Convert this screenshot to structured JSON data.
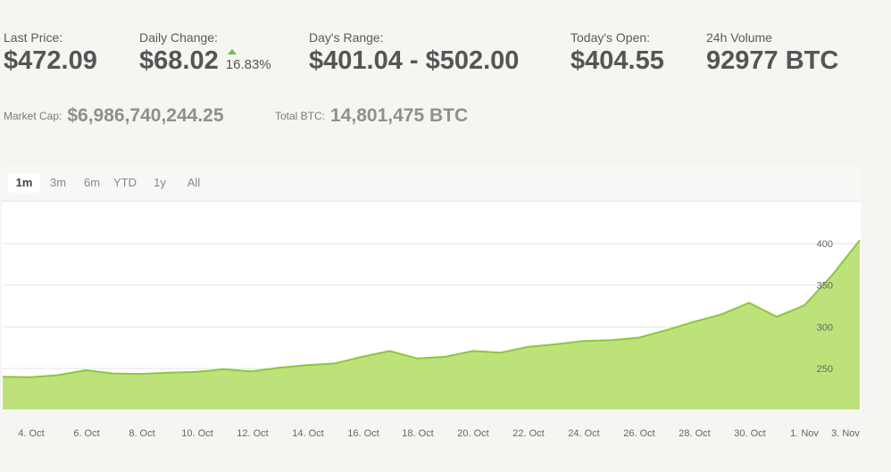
{
  "stats": [
    {
      "label": "Last Price:",
      "value": "$472.09"
    },
    {
      "label": "Daily Change:",
      "value": "$68.02",
      "pct": "16.83%"
    },
    {
      "label": "Day's Range:",
      "value": "$401.04 - $502.00"
    },
    {
      "label": "Today's Open:",
      "value": "$404.55"
    },
    {
      "label": "24h Volume",
      "value": "92977 BTC"
    }
  ],
  "market_cap": {
    "label": "Market Cap:",
    "value": "$6,986,740,244.25"
  },
  "total_btc": {
    "label": "Total BTC:",
    "value": "14,801,475 BTC"
  },
  "ranges": [
    "1m",
    "3m",
    "6m",
    "YTD",
    "1y",
    "All"
  ],
  "active_range": "1m",
  "colors": {
    "area": "#bde27a",
    "line": "#8cc63f",
    "grid": "#e5e5e5",
    "up_arrow": "#6cc04a"
  },
  "chart_data": {
    "type": "area",
    "x_tick_labels": [
      "4. Oct",
      "6. Oct",
      "8. Oct",
      "10. Oct",
      "12. Oct",
      "14. Oct",
      "16. Oct",
      "18. Oct",
      "20. Oct",
      "22. Oct",
      "24. Oct",
      "26. Oct",
      "28. Oct",
      "30. Oct",
      "1. Nov",
      "3. Nov"
    ],
    "y_ticks": [
      250,
      300,
      350,
      400
    ],
    "ylim": [
      200,
      450
    ],
    "grid": true,
    "series": [
      {
        "values": [
          240,
          239.5,
          242,
          248,
          244,
          243.5,
          245,
          246,
          249,
          246.5,
          251,
          254,
          256,
          264,
          271,
          262,
          264,
          271,
          269,
          276,
          279,
          283,
          284,
          287,
          296,
          306,
          315,
          329,
          312,
          326,
          362,
          404
        ]
      }
    ]
  }
}
